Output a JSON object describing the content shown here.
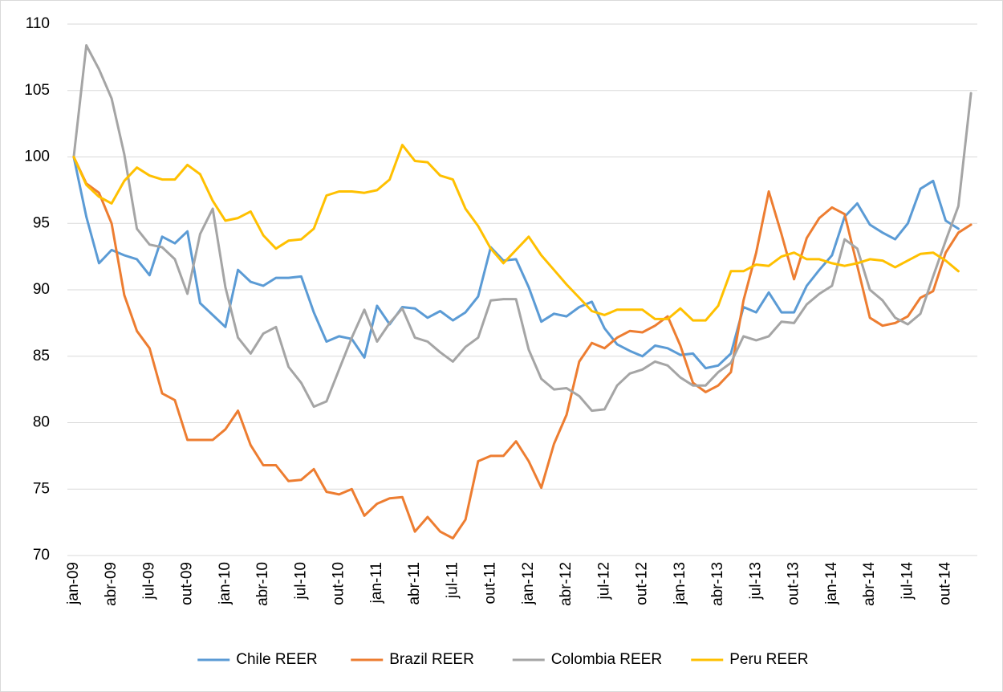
{
  "chart_data": {
    "type": "line",
    "categories": [
      "jan-09",
      null,
      null,
      "abr-09",
      null,
      null,
      "jul-09",
      null,
      null,
      "out-09",
      null,
      null,
      "jan-10",
      null,
      null,
      "abr-10",
      null,
      null,
      "jul-10",
      null,
      null,
      "out-10",
      null,
      null,
      "jan-11",
      null,
      null,
      "abr-11",
      null,
      null,
      "jul-11",
      null,
      null,
      "out-11",
      null,
      null,
      "jan-12",
      null,
      null,
      "abr-12",
      null,
      null,
      "jul-12",
      null,
      null,
      "out-12",
      null,
      null,
      "jan-13",
      null,
      null,
      "abr-13",
      null,
      null,
      "jul-13",
      null,
      null,
      "out-13",
      null,
      null,
      "jan-14",
      null,
      null,
      "abr-14",
      null,
      null,
      "jul-14",
      null,
      null,
      "out-14",
      null,
      null
    ],
    "series": [
      {
        "name": "Chile REER",
        "color": "#5b9bd5",
        "values": [
          100,
          95.5,
          92,
          93,
          92.6,
          92.3,
          91.1,
          94,
          93.5,
          94.4,
          89,
          88.1,
          87.2,
          91.5,
          90.6,
          90.3,
          90.9,
          90.9,
          91,
          88.3,
          86.1,
          86.5,
          86.3,
          84.9,
          88.8,
          87.4,
          88.7,
          88.6,
          87.9,
          88.4,
          87.7,
          88.3,
          89.5,
          93.2,
          92.2,
          92.3,
          90.2,
          87.6,
          88.2,
          88,
          88.7,
          89.1,
          87.1,
          85.9,
          85.4,
          85,
          85.8,
          85.6,
          85.1,
          85.2,
          84.1,
          84.3,
          85.2,
          88.7,
          88.3,
          89.8,
          88.3,
          88.3,
          90.3,
          91.5,
          92.6,
          95.5,
          96.5,
          94.9,
          94.3,
          93.8,
          95,
          97.6,
          98.2,
          95.2,
          94.6,
          null
        ]
      },
      {
        "name": "Brazil REER",
        "color": "#ed7d31",
        "values": [
          100,
          98,
          97.3,
          95,
          89.6,
          86.9,
          85.6,
          82.2,
          81.7,
          78.7,
          78.7,
          78.7,
          79.5,
          80.9,
          78.3,
          76.8,
          76.8,
          75.6,
          75.7,
          76.5,
          74.8,
          74.6,
          75,
          73,
          73.9,
          74.3,
          74.4,
          71.8,
          72.9,
          71.8,
          71.3,
          72.7,
          77.1,
          77.5,
          77.5,
          78.6,
          77.1,
          75.1,
          78.4,
          80.6,
          84.6,
          86,
          85.6,
          86.4,
          86.9,
          86.8,
          87.3,
          88,
          85.8,
          83,
          82.3,
          82.8,
          83.8,
          89.2,
          92.8,
          97.4,
          94.2,
          90.8,
          93.9,
          95.4,
          96.2,
          95.7,
          91.8,
          87.9,
          87.3,
          87.5,
          88,
          89.4,
          89.9,
          92.8,
          94.3,
          94.9
        ]
      },
      {
        "name": "Colombia REER",
        "color": "#a5a5a5",
        "values": [
          100,
          108.4,
          106.6,
          104.4,
          100.2,
          94.6,
          93.4,
          93.2,
          92.3,
          89.7,
          94.2,
          96.1,
          90.2,
          86.4,
          85.2,
          86.7,
          87.2,
          84.2,
          83,
          81.2,
          81.6,
          84,
          86.4,
          88.5,
          86.1,
          87.5,
          88.6,
          86.4,
          86.1,
          85.3,
          84.6,
          85.7,
          86.4,
          89.2,
          89.3,
          89.3,
          85.5,
          83.3,
          82.5,
          82.6,
          82,
          80.9,
          81,
          82.8,
          83.7,
          84,
          84.6,
          84.3,
          83.4,
          82.8,
          82.8,
          83.8,
          84.5,
          86.5,
          86.2,
          86.5,
          87.6,
          87.5,
          88.9,
          89.7,
          90.3,
          93.8,
          93.1,
          90,
          89.2,
          87.9,
          87.4,
          88.2,
          91,
          93.7,
          96.3,
          104.8
        ]
      },
      {
        "name": "Peru REER",
        "color": "#ffc000",
        "values": [
          100,
          97.9,
          97,
          96.5,
          98.2,
          99.2,
          98.6,
          98.3,
          98.3,
          99.4,
          98.7,
          96.7,
          95.2,
          95.4,
          95.9,
          94.1,
          93.1,
          93.7,
          93.8,
          94.6,
          97.1,
          97.4,
          97.4,
          97.3,
          97.5,
          98.3,
          100.9,
          99.7,
          99.6,
          98.6,
          98.3,
          96.1,
          94.8,
          93.1,
          92,
          93,
          94,
          92.6,
          91.5,
          90.4,
          89.4,
          88.4,
          88.1,
          88.5,
          88.5,
          88.5,
          87.8,
          87.8,
          88.6,
          87.7,
          87.7,
          88.8,
          91.4,
          91.4,
          91.9,
          91.8,
          92.5,
          92.8,
          92.3,
          92.3,
          92,
          91.8,
          92,
          92.3,
          92.2,
          91.7,
          92.2,
          92.7,
          92.8,
          92.2,
          91.4,
          null
        ]
      }
    ],
    "ylim": [
      70,
      110
    ],
    "yticks": [
      70,
      75,
      80,
      85,
      90,
      95,
      100,
      105,
      110
    ],
    "grid": true,
    "legend": "bottom"
  }
}
